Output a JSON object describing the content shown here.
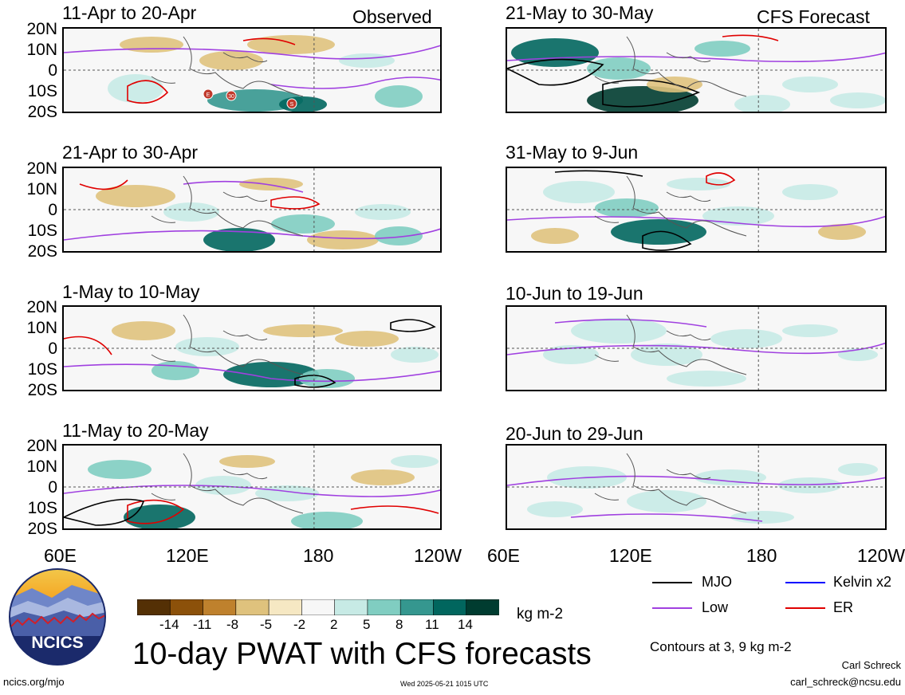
{
  "panels_left": [
    {
      "title": "11-Apr to 20-Apr",
      "tag": "Observed"
    },
    {
      "title": "21-Apr to 30-Apr",
      "tag": ""
    },
    {
      "title": "1-May to 10-May",
      "tag": ""
    },
    {
      "title": "11-May to 20-May",
      "tag": ""
    }
  ],
  "panels_right": [
    {
      "title": "21-May to 30-May",
      "tag": "CFS Forecast"
    },
    {
      "title": "31-May to 9-Jun",
      "tag": ""
    },
    {
      "title": "10-Jun to 19-Jun",
      "tag": ""
    },
    {
      "title": "20-Jun to 29-Jun",
      "tag": ""
    }
  ],
  "lat_labels": [
    "20N",
    "10N",
    "0",
    "10S",
    "20S"
  ],
  "lon_labels": [
    "60E",
    "120E",
    "180",
    "120W"
  ],
  "storm_markers": [
    "E",
    "30",
    "S"
  ],
  "colorbar": {
    "labels": [
      "-14",
      "-11",
      "-8",
      "-5",
      "-2",
      "2",
      "5",
      "8",
      "11",
      "14"
    ],
    "colors": [
      "#543005",
      "#8c510a",
      "#bf812d",
      "#dfc27d",
      "#f6e8c3",
      "#f7f7f7",
      "#c7eae5",
      "#80cdc1",
      "#35978f",
      "#01665e",
      "#003c30"
    ],
    "units": "kg m-2"
  },
  "legend": [
    {
      "label": "MJO",
      "color": "#000000"
    },
    {
      "label": "Kelvin x2",
      "color": "#0000ff"
    },
    {
      "label": "Low",
      "color": "#a040e0"
    },
    {
      "label": "ER",
      "color": "#e00000"
    }
  ],
  "main_title": "10-day PWAT with CFS forecasts",
  "contour_note": "Contours at 3, 9 kg m-2",
  "logo_text": "NCICS",
  "footer": {
    "url": "ncics.org/mjo",
    "timestamp": "Wed 2025-05-21 1015 UTC",
    "author": "Carl Schreck",
    "email": "carl_schreck@ncsu.edu"
  }
}
